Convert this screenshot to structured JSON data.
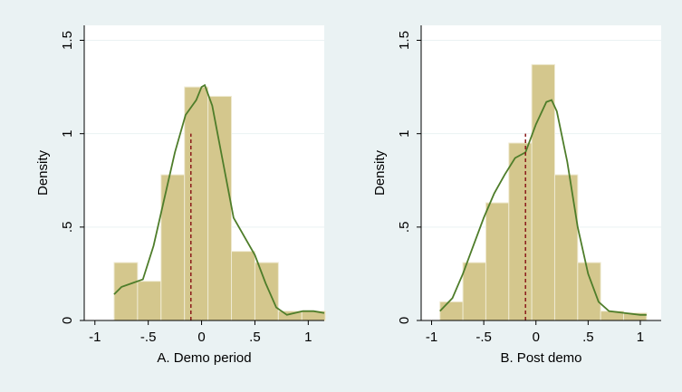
{
  "chart_data": [
    {
      "type": "histogram",
      "xlabel": "A. Demo period",
      "ylabel": "Density",
      "bins": [
        -0.82,
        -0.6,
        -0.38,
        -0.16,
        0.06,
        0.28,
        0.5,
        0.72,
        0.94,
        1.16
      ],
      "values": [
        0.31,
        0.21,
        0.78,
        1.25,
        1.2,
        0.37,
        0.31,
        0.05,
        0.05
      ],
      "color": "#d4c78d",
      "density": {
        "x": [
          -0.82,
          -0.75,
          -0.65,
          -0.55,
          -0.45,
          -0.35,
          -0.25,
          -0.15,
          -0.05,
          0.0,
          0.03,
          0.1,
          0.2,
          0.3,
          0.4,
          0.5,
          0.6,
          0.7,
          0.8,
          0.95,
          1.05,
          1.15
        ],
        "values": [
          0.14,
          0.18,
          0.2,
          0.22,
          0.4,
          0.65,
          0.9,
          1.1,
          1.18,
          1.25,
          1.26,
          1.15,
          0.85,
          0.55,
          0.45,
          0.35,
          0.2,
          0.07,
          0.03,
          0.05,
          0.05,
          0.04
        ],
        "color": "#4e7d2a"
      },
      "reference_line": {
        "x": -0.1,
        "height": 1,
        "color": "#8b1a1a"
      },
      "xlim": [
        -1.1,
        1.15
      ],
      "ylim": [
        0,
        1.58
      ],
      "xticks": [
        -1,
        {
          "value": -0.5,
          "label": "-.5"
        },
        0,
        {
          "value": 0.5,
          "label": ".5"
        },
        1
      ],
      "yticks": [
        0,
        {
          "value": 0.5,
          "label": ".5"
        },
        1,
        1.5
      ],
      "grid": true
    },
    {
      "type": "histogram",
      "xlabel": "B. Post demo",
      "ylabel": "Density",
      "bins": [
        -0.92,
        -0.7,
        -0.48,
        -0.26,
        -0.04,
        0.18,
        0.4,
        0.62,
        0.84,
        1.06
      ],
      "values": [
        0.1,
        0.31,
        0.63,
        0.95,
        1.37,
        0.78,
        0.31,
        0.05,
        0.04
      ],
      "color": "#d4c78d",
      "density": {
        "x": [
          -0.92,
          -0.8,
          -0.7,
          -0.6,
          -0.5,
          -0.4,
          -0.3,
          -0.2,
          -0.1,
          0.0,
          0.1,
          0.15,
          0.2,
          0.3,
          0.4,
          0.5,
          0.6,
          0.7,
          0.85,
          1.0,
          1.06
        ],
        "values": [
          0.05,
          0.12,
          0.25,
          0.4,
          0.55,
          0.68,
          0.78,
          0.87,
          0.9,
          1.05,
          1.17,
          1.18,
          1.12,
          0.85,
          0.5,
          0.25,
          0.1,
          0.05,
          0.04,
          0.03,
          0.03
        ],
        "color": "#4e7d2a"
      },
      "reference_line": {
        "x": -0.1,
        "height": 1,
        "color": "#8b1a1a"
      },
      "xlim": [
        -1.1,
        1.2
      ],
      "ylim": [
        0,
        1.58
      ],
      "xticks": [
        -1,
        {
          "value": -0.5,
          "label": "-.5"
        },
        0,
        {
          "value": 0.5,
          "label": ".5"
        },
        1
      ],
      "yticks": [
        0,
        {
          "value": 0.5,
          "label": ".5"
        },
        1,
        1.5
      ],
      "grid": true
    }
  ]
}
